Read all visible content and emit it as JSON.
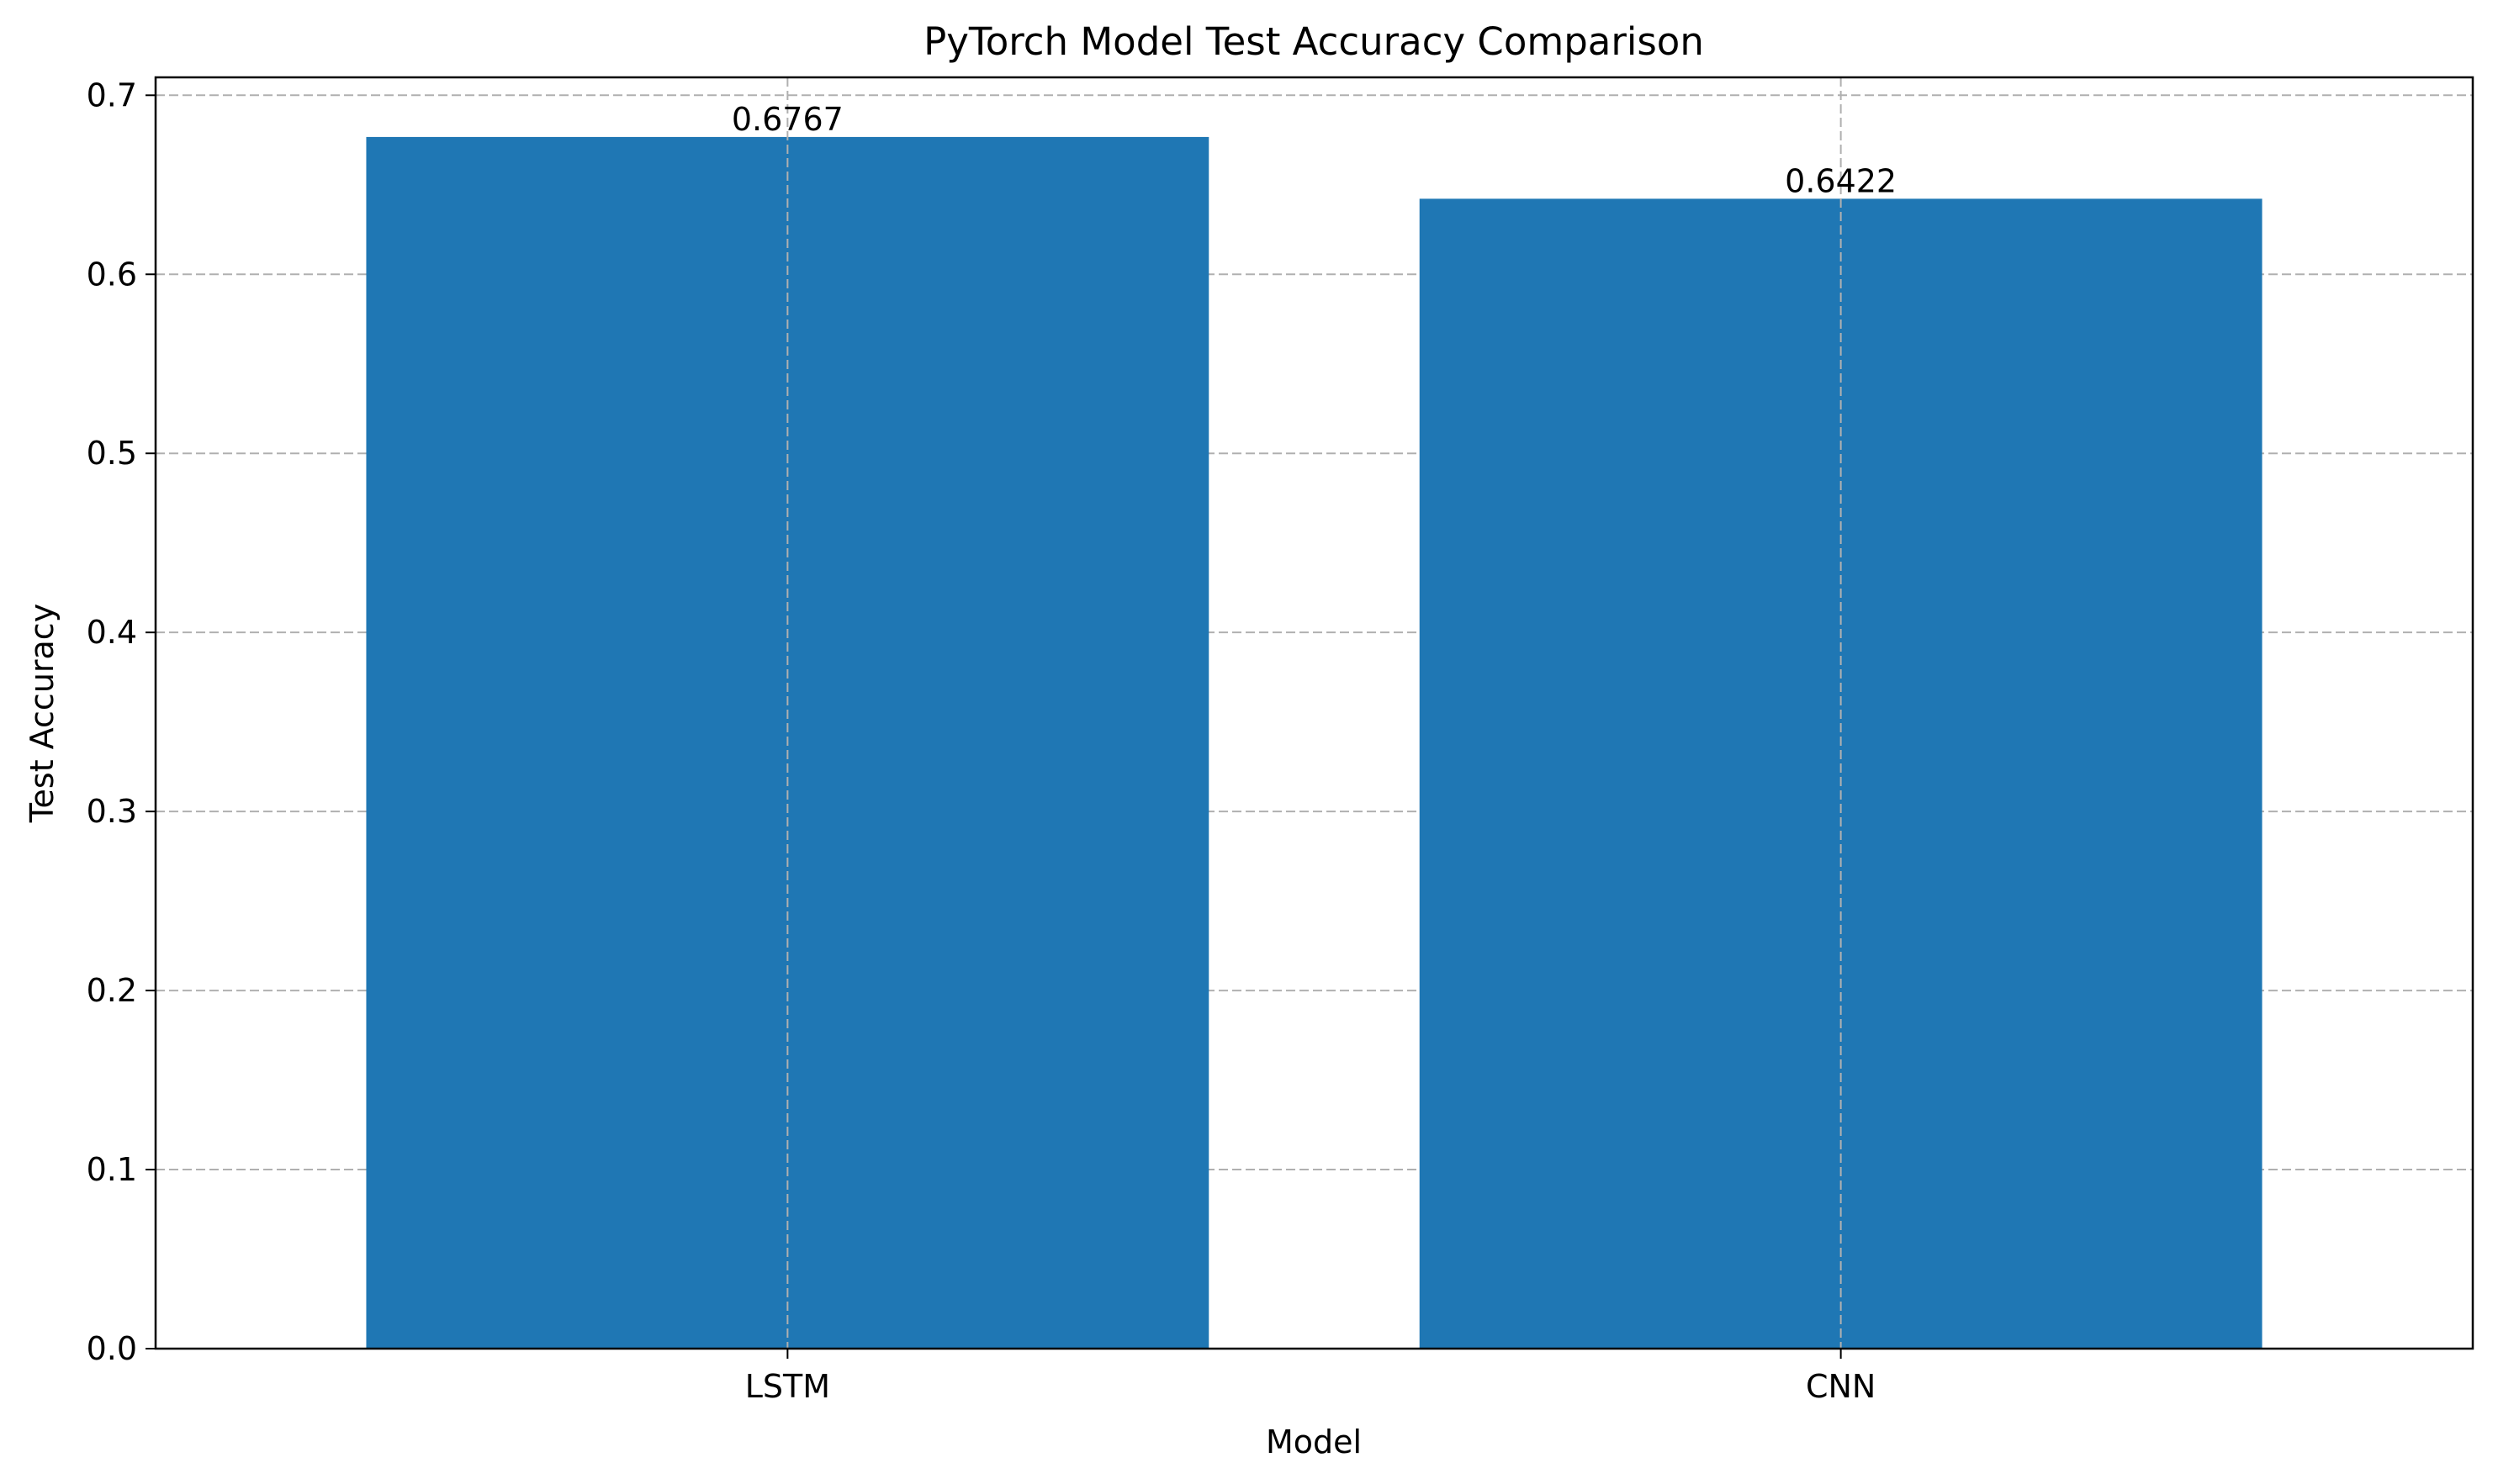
{
  "chart_data": {
    "type": "bar",
    "title": "PyTorch Model Test Accuracy Comparison",
    "xlabel": "Model",
    "ylabel": "Test Accuracy",
    "categories": [
      "LSTM",
      "CNN"
    ],
    "values": [
      0.6767,
      0.6422
    ],
    "value_labels": [
      "0.6767",
      "0.6422"
    ],
    "ylim": [
      0,
      0.71
    ],
    "yticks": [
      0.0,
      0.1,
      0.2,
      0.3,
      0.4,
      0.5,
      0.6,
      0.7
    ],
    "ytick_labels": [
      "0.0",
      "0.1",
      "0.2",
      "0.3",
      "0.4",
      "0.5",
      "0.6",
      "0.7"
    ],
    "grid": true,
    "bar_color": "#1f77b4"
  }
}
